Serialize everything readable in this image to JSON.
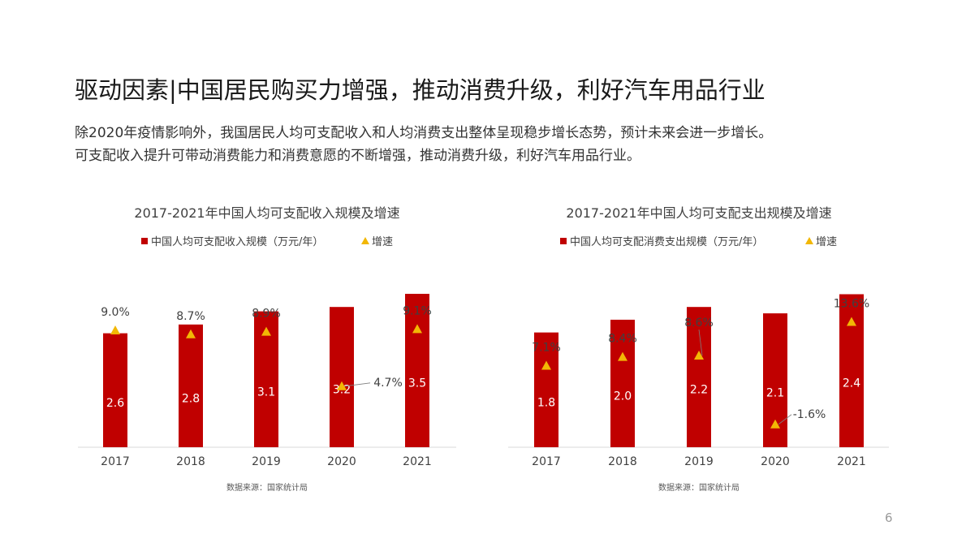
{
  "slide": {
    "title": "驱动因素|中国居民购买力增强，推动消费升级，利好汽车用品行业",
    "description_lines": [
      "除2020年疫情影响外，我国居民人均可支配收入和人均消费支出整体呈现稳步增长态势，预计未来会进一步增长。",
      "可支配收入提升可带动消费能力和消费意愿的不断增强，推动消费升级，利好汽车用品行业。"
    ],
    "page_number": "6"
  },
  "colors": {
    "bar": "#C00000",
    "marker": "#F2B705",
    "axis": "#d9d9d9",
    "text": "#404040"
  },
  "chart_data": [
    {
      "type": "bar",
      "title": "2017-2021年中国人均可支配收入规模及增速",
      "categories": [
        "2017",
        "2018",
        "2019",
        "2020",
        "2021"
      ],
      "series": [
        {
          "name": "中国人均可支配收入规模（万元/年）",
          "kind": "bar",
          "values": [
            2.6,
            2.8,
            3.1,
            3.2,
            3.5
          ],
          "labels": [
            "2.6",
            "2.8",
            "3.1",
            "3.2",
            "3.5"
          ]
        },
        {
          "name": "增速",
          "kind": "marker",
          "values": [
            9.0,
            8.7,
            8.9,
            4.7,
            9.1
          ],
          "labels": [
            "9.0%",
            "8.7%",
            "8.9%",
            "4.7%",
            "9.1%"
          ]
        }
      ],
      "bar_ylim": [
        0,
        4.0
      ],
      "growth_ylim": [
        0,
        13.5
      ],
      "source": "数据来源：国家统计局",
      "legend_position": "top"
    },
    {
      "type": "bar",
      "title": "2017-2021年中国人均可支配支出规模及增速",
      "categories": [
        "2017",
        "2018",
        "2019",
        "2020",
        "2021"
      ],
      "series": [
        {
          "name": "中国人均可支配消费支出规模（万元/年）",
          "kind": "bar",
          "values": [
            1.8,
            2.0,
            2.2,
            2.1,
            2.4
          ],
          "labels": [
            "1.8",
            "2.0",
            "2.2",
            "2.1",
            "2.4"
          ]
        },
        {
          "name": "增速",
          "kind": "marker",
          "values": [
            7.1,
            8.4,
            8.6,
            -1.6,
            13.6
          ],
          "labels": [
            "7.1%",
            "8.4%",
            "8.6%",
            "-1.6%",
            "13.6%"
          ]
        }
      ],
      "bar_ylim": [
        0,
        2.75
      ],
      "growth_ylim": [
        -5,
        21
      ],
      "source": "数据来源：国家统计局",
      "legend_position": "top"
    }
  ]
}
